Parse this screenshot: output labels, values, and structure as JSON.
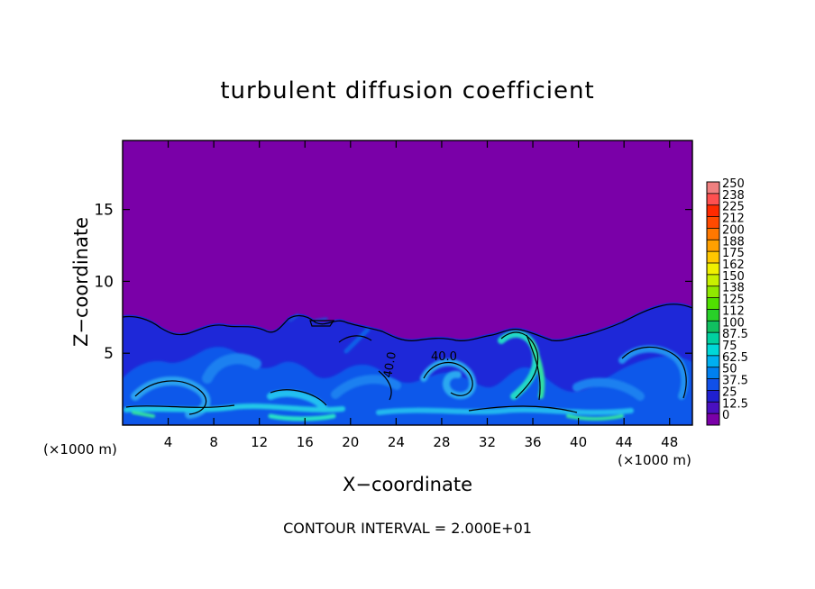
{
  "chart_data": {
    "type": "heatmap",
    "title": "turbulent diffusion coefficient",
    "xlabel": "X−coordinate",
    "ylabel": "Z−coordinate",
    "x_unit_label": "(×1000 m)",
    "x_unit_label_right": "(×1000 m)",
    "footer": "CONTOUR INTERVAL = 2.000E+01",
    "x_ticks": [
      "4",
      "8",
      "12",
      "16",
      "20",
      "24",
      "28",
      "32",
      "36",
      "40",
      "44",
      "48"
    ],
    "x_tick_values": [
      4,
      8,
      12,
      16,
      20,
      24,
      28,
      32,
      36,
      40,
      44,
      48
    ],
    "y_ticks": [
      "5",
      "10",
      "15"
    ],
    "y_tick_values": [
      5,
      10,
      15
    ],
    "xlim": [
      0,
      50
    ],
    "ylim": [
      0,
      19.8
    ],
    "contour_labels": [
      {
        "text": "40.0",
        "x": 28.5,
        "z": 5.0
      },
      {
        "text": "40.0",
        "x": 23.1,
        "z": 4.0
      }
    ],
    "colorbar": {
      "labels": [
        "250",
        "238",
        "225",
        "212",
        "200",
        "188",
        "175",
        "162",
        "150",
        "138",
        "125",
        "112",
        "100",
        "87.5",
        "75",
        "62.5",
        "50",
        "37.5",
        "25",
        "12.5",
        "0"
      ],
      "colors": [
        "#f08080",
        "#ff5050",
        "#ff2a00",
        "#ff4a00",
        "#ff7800",
        "#ffa000",
        "#ffc800",
        "#f0f000",
        "#c8f000",
        "#90e800",
        "#50e000",
        "#28d028",
        "#10c060",
        "#00d0a0",
        "#00d8d8",
        "#00b0f0",
        "#0080f0",
        "#1050e8",
        "#2020d0",
        "#4a10c0",
        "#7a00a8"
      ]
    },
    "background_value_color": "#7a00a8"
  }
}
